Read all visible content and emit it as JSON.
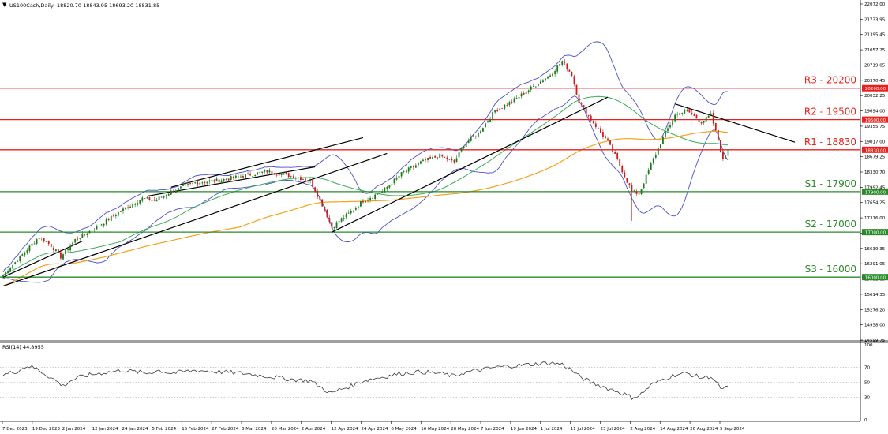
{
  "header": {
    "symbol": "US100Cash,Daily",
    "ohlc": "18820.70 18843.95 18693.20 18831.85",
    "icon": "dropdown-triangle-icon"
  },
  "rsi_header": {
    "label": "RSI(14) 44.8955"
  },
  "colors": {
    "background": "#ffffff",
    "candle_up": "#1c7a1c",
    "candle_down": "#c81e1e",
    "resistance": "#e8211e",
    "support": "#2a8a2a",
    "bollinger": "#4b4fc9",
    "ma_green": "#3cab5a",
    "ma_orange": "#f6a21b",
    "trendline": "#000000",
    "rsi_line": "#3a3a3a",
    "grid_dotted": "#999999"
  },
  "chart_data": {
    "type": "candlestick",
    "instrument": "US100Cash",
    "timeframe": "Daily",
    "price_axis_ticks": [
      "22072.00",
      "21733.95",
      "21395.45",
      "21057.25",
      "20719.05",
      "20370.45",
      "20032.25",
      "19694.00",
      "19355.75",
      "19017.00",
      "18679.25",
      "18330.70",
      "17992.45",
      "17654.25",
      "17316.00",
      "16977.80",
      "16639.35",
      "16291.05",
      "15952.85",
      "15614.35",
      "15276.20",
      "14938.00",
      "14599.75"
    ],
    "price_ylim": [
      14599.75,
      22072.0
    ],
    "date_ticks": [
      "7 Dec 2023",
      "19 Dec 2023",
      "2 Jan 2024",
      "12 Jan 2024",
      "24 Jan 2024",
      "5 Feb 2024",
      "15 Feb 2024",
      "27 Feb 2024",
      "8 Mar 2024",
      "20 Mar 2024",
      "2 Apr 2024",
      "12 Apr 2024",
      "24 Apr 2024",
      "6 May 2024",
      "16 May 2024",
      "28 May 2024",
      "7 Jun 2024",
      "19 Jun 2024",
      "1 Jul 2024",
      "11 Jul 2024",
      "23 Jul 2024",
      "2 Aug 2024",
      "14 Aug 2024",
      "26 Aug 2024",
      "5 Sep 2024"
    ],
    "levels": [
      {
        "label": "R3 - 20200",
        "price": 20200,
        "tag": "20200.00",
        "kind": "resistance"
      },
      {
        "label": "R2 - 19500",
        "price": 19500,
        "tag": "19500.00",
        "kind": "resistance"
      },
      {
        "label": "R1 - 18830",
        "price": 18830,
        "tag": "18830.00",
        "kind": "resistance"
      },
      {
        "label": "S1 - 17900",
        "price": 17900,
        "tag": "17900.00",
        "kind": "support"
      },
      {
        "label": "S2 - 17000",
        "price": 17000,
        "tag": "17000.00",
        "kind": "support"
      },
      {
        "label": "S3 - 16000",
        "price": 16000,
        "tag": "16000.00",
        "kind": "support"
      }
    ],
    "close_anchors": [
      [
        0,
        16050
      ],
      [
        8,
        16500
      ],
      [
        15,
        16900
      ],
      [
        20,
        16700
      ],
      [
        24,
        16450
      ],
      [
        30,
        16830
      ],
      [
        40,
        17150
      ],
      [
        50,
        17500
      ],
      [
        58,
        17750
      ],
      [
        63,
        17700
      ],
      [
        70,
        17900
      ],
      [
        80,
        18100
      ],
      [
        90,
        18150
      ],
      [
        100,
        18250
      ],
      [
        110,
        18350
      ],
      [
        120,
        18250
      ],
      [
        128,
        18150
      ],
      [
        134,
        17500
      ],
      [
        137,
        17100
      ],
      [
        140,
        17250
      ],
      [
        145,
        17450
      ],
      [
        150,
        17700
      ],
      [
        158,
        17900
      ],
      [
        166,
        18300
      ],
      [
        174,
        18550
      ],
      [
        182,
        18700
      ],
      [
        188,
        18550
      ],
      [
        192,
        18950
      ],
      [
        198,
        19200
      ],
      [
        205,
        19700
      ],
      [
        212,
        19900
      ],
      [
        220,
        20200
      ],
      [
        228,
        20500
      ],
      [
        233,
        20800
      ],
      [
        237,
        20500
      ],
      [
        240,
        19900
      ],
      [
        245,
        19500
      ],
      [
        252,
        19000
      ],
      [
        256,
        18600
      ],
      [
        262,
        17900
      ],
      [
        265,
        17850
      ],
      [
        270,
        18500
      ],
      [
        275,
        19100
      ],
      [
        280,
        19600
      ],
      [
        285,
        19700
      ],
      [
        291,
        19450
      ],
      [
        295,
        19600
      ],
      [
        298,
        19050
      ],
      [
        300,
        18600
      ],
      [
        302,
        18830
      ]
    ],
    "indicators": [
      "Bollinger Bands",
      "Moving Average (green)",
      "Moving Average (orange)",
      "RSI(14)"
    ],
    "rsi": {
      "ticks": [
        "100",
        "70",
        "50",
        "30",
        "0"
      ],
      "levels": [
        70,
        50,
        30
      ],
      "ylim": [
        0,
        100
      ],
      "value": 44.8955,
      "anchors": [
        [
          0,
          60
        ],
        [
          6,
          65
        ],
        [
          10,
          72
        ],
        [
          14,
          68
        ],
        [
          18,
          60
        ],
        [
          22,
          52
        ],
        [
          25,
          45
        ],
        [
          28,
          52
        ],
        [
          33,
          58
        ],
        [
          40,
          62
        ],
        [
          50,
          66
        ],
        [
          55,
          64
        ],
        [
          60,
          62
        ],
        [
          65,
          66
        ],
        [
          70,
          62
        ],
        [
          80,
          66
        ],
        [
          90,
          64
        ],
        [
          100,
          62
        ],
        [
          110,
          58
        ],
        [
          120,
          54
        ],
        [
          128,
          52
        ],
        [
          134,
          40
        ],
        [
          137,
          35
        ],
        [
          140,
          40
        ],
        [
          145,
          45
        ],
        [
          150,
          52
        ],
        [
          158,
          57
        ],
        [
          166,
          62
        ],
        [
          174,
          64
        ],
        [
          182,
          62
        ],
        [
          188,
          58
        ],
        [
          192,
          63
        ],
        [
          198,
          66
        ],
        [
          205,
          70
        ],
        [
          212,
          72
        ],
        [
          220,
          74
        ],
        [
          228,
          76
        ],
        [
          233,
          74
        ],
        [
          237,
          66
        ],
        [
          240,
          58
        ],
        [
          245,
          50
        ],
        [
          252,
          42
        ],
        [
          256,
          38
        ],
        [
          262,
          30
        ],
        [
          265,
          32
        ],
        [
          270,
          46
        ],
        [
          275,
          54
        ],
        [
          280,
          60
        ],
        [
          285,
          62
        ],
        [
          291,
          56
        ],
        [
          295,
          58
        ],
        [
          298,
          46
        ],
        [
          300,
          40
        ],
        [
          302,
          45
        ]
      ]
    }
  }
}
